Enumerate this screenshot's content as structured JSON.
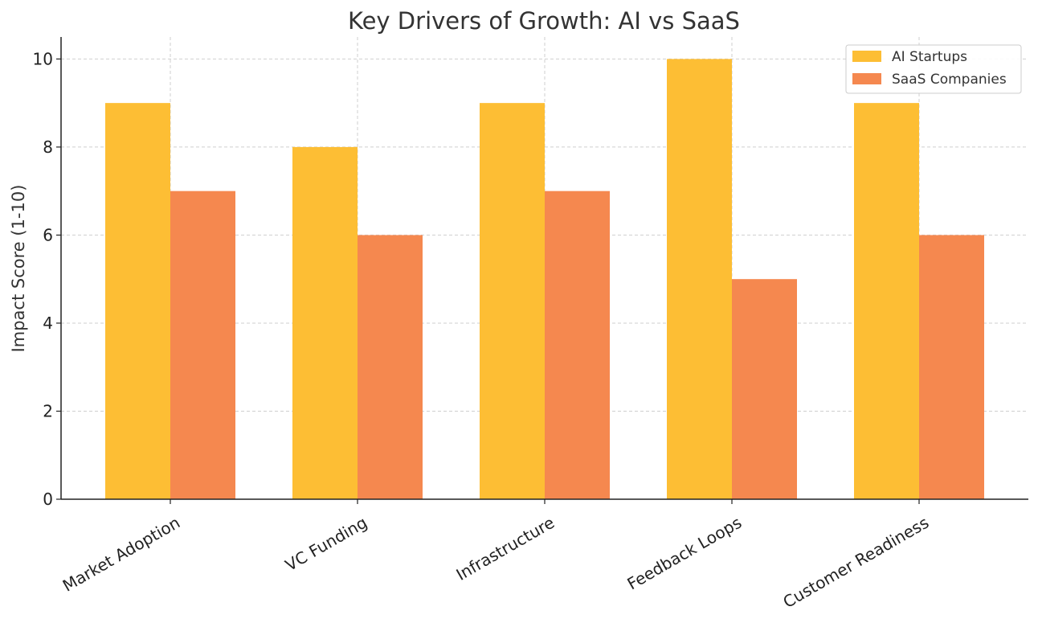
{
  "chart_data": {
    "type": "bar",
    "title": "Key Drivers of Growth: AI vs SaaS",
    "xlabel": "",
    "ylabel": "Impact Score (1-10)",
    "categories": [
      "Market Adoption",
      "VC Funding",
      "Infrastructure",
      "Feedback Loops",
      "Customer Readiness"
    ],
    "series": [
      {
        "name": "AI Startups",
        "values": [
          9,
          8,
          9,
          10,
          9
        ],
        "color": "#FDBE34"
      },
      {
        "name": "SaaS Companies",
        "values": [
          7,
          6,
          7,
          5,
          6
        ],
        "color": "#F5884F"
      }
    ],
    "ylim": [
      0,
      10.5
    ],
    "yticks": [
      0,
      2,
      4,
      6,
      8,
      10
    ],
    "grid": true,
    "legend_position": "top-right"
  }
}
